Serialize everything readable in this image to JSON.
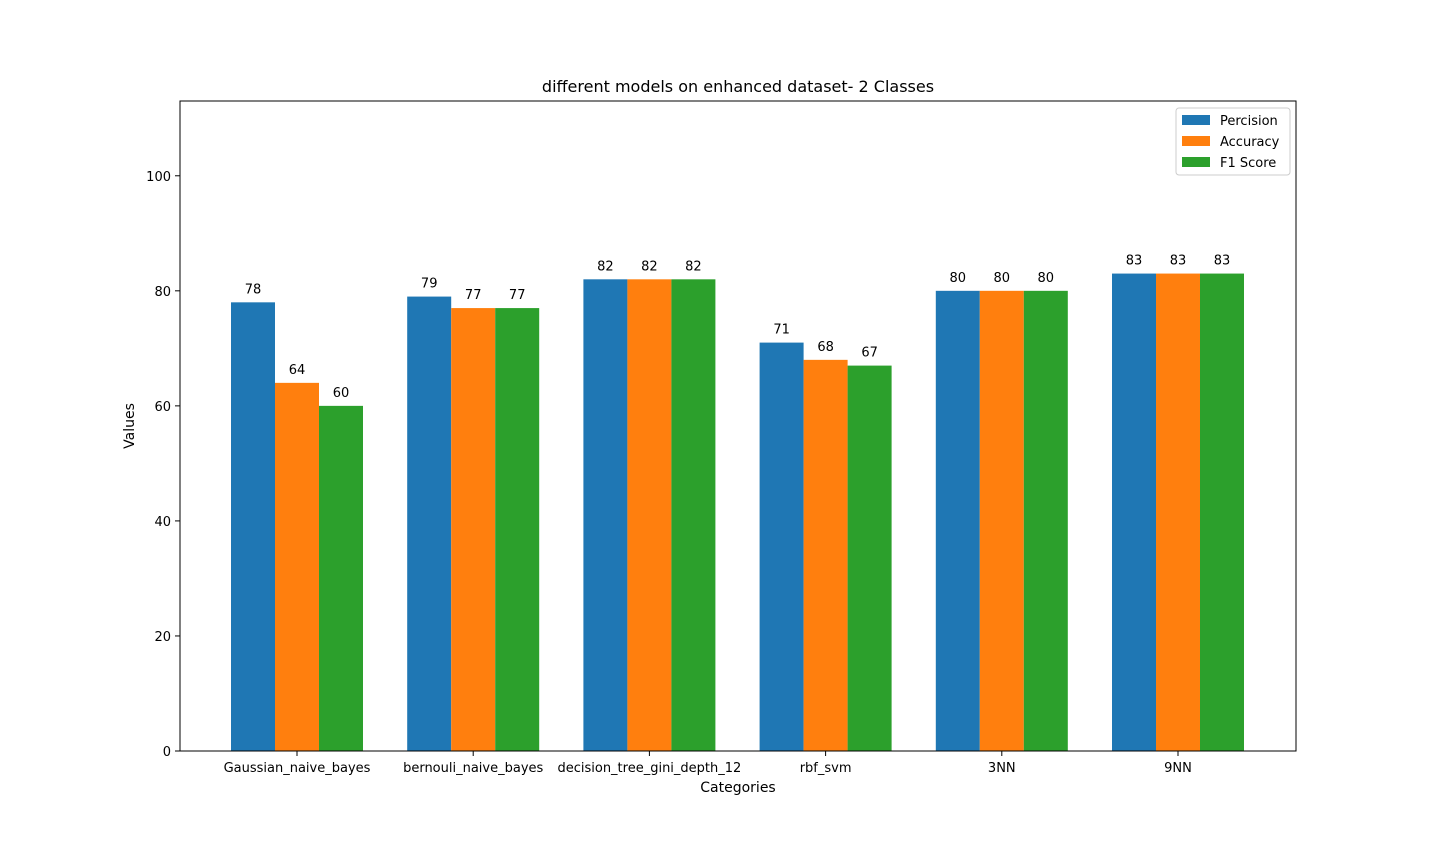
{
  "chart_data": {
    "type": "bar",
    "title": "different models on enhanced dataset- 2 Classes",
    "xlabel": "Categories",
    "ylabel": "Values",
    "categories": [
      "Gaussian_naive_bayes",
      "bernouli_naive_bayes",
      "decision_tree_gini_depth_12",
      "rbf_svm",
      "3NN",
      "9NN"
    ],
    "series": [
      {
        "name": "Percision",
        "color": "#1f77b4",
        "values": [
          78,
          79,
          82,
          71,
          80,
          83
        ]
      },
      {
        "name": "Accuracy",
        "color": "#ff7f0e",
        "values": [
          64,
          77,
          82,
          68,
          80,
          83
        ]
      },
      {
        "name": "F1 Score",
        "color": "#2ca02c",
        "values": [
          60,
          77,
          82,
          67,
          80,
          83
        ]
      }
    ],
    "ylim": [
      0,
      113
    ],
    "yticks": [
      0,
      20,
      40,
      60,
      80,
      100
    ],
    "grid": false,
    "legend_position": "top-right",
    "data_labels": true
  }
}
